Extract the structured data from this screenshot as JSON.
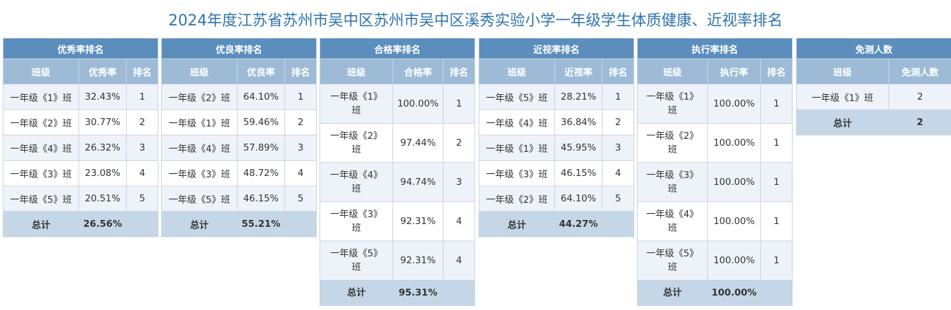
{
  "title": "2024年度江苏省苏州市吴中区苏州市吴中区溪秀实验小学一年级学生体质健康、近视率排名",
  "tables": [
    {
      "title": "优秀率排名",
      "headers": [
        "班级",
        "优秀率",
        "排名"
      ],
      "rows": [
        [
          "一年级《1》班",
          "32.43%",
          "1"
        ],
        [
          "一年级《2》班",
          "30.77%",
          "2"
        ],
        [
          "一年级《4》班",
          "26.32%",
          "3"
        ],
        [
          "一年级《3》班",
          "23.08%",
          "4"
        ],
        [
          "一年级《5》班",
          "20.51%",
          "5"
        ]
      ],
      "total": [
        "总计",
        "26.56%",
        ""
      ]
    },
    {
      "title": "优良率排名",
      "headers": [
        "班级",
        "优良率",
        "排名"
      ],
      "rows": [
        [
          "一年级《2》班",
          "64.10%",
          "1"
        ],
        [
          "一年级《1》班",
          "59.46%",
          "2"
        ],
        [
          "一年级《4》班",
          "57.89%",
          "3"
        ],
        [
          "一年级《3》班",
          "48.72%",
          "4"
        ],
        [
          "一年级《5》班",
          "46.15%",
          "5"
        ]
      ],
      "total": [
        "总计",
        "55.21%",
        ""
      ]
    },
    {
      "title": "合格率排名",
      "headers": [
        "班级",
        "合格率",
        "排名"
      ],
      "rows": [
        [
          "一年级《1》班",
          "100.00%",
          "1"
        ],
        [
          "一年级《2》班",
          "97.44%",
          "2"
        ],
        [
          "一年级《4》班",
          "94.74%",
          "3"
        ],
        [
          "一年级《3》班",
          "92.31%",
          "4"
        ],
        [
          "一年级《5》班",
          "92.31%",
          "4"
        ]
      ],
      "total": [
        "总计",
        "95.31%",
        ""
      ]
    },
    {
      "title": "近视率排名",
      "headers": [
        "班级",
        "近视率",
        "排名"
      ],
      "rows": [
        [
          "一年级《5》班",
          "28.21%",
          "1"
        ],
        [
          "一年级《4》班",
          "36.84%",
          "2"
        ],
        [
          "一年级《1》班",
          "45.95%",
          "3"
        ],
        [
          "一年级《3》班",
          "46.15%",
          "4"
        ],
        [
          "一年级《2》班",
          "64.10%",
          "5"
        ]
      ],
      "total": [
        "总计",
        "44.27%",
        ""
      ]
    },
    {
      "title": "执行率排名",
      "headers": [
        "班级",
        "执行率",
        "排名"
      ],
      "rows": [
        [
          "一年级《1》班",
          "100.00%",
          "1"
        ],
        [
          "一年级《2》班",
          "100.00%",
          "1"
        ],
        [
          "一年级《3》班",
          "100.00%",
          "1"
        ],
        [
          "一年级《4》班",
          "100.00%",
          "1"
        ],
        [
          "一年级《5》班",
          "100.00%",
          "1"
        ]
      ],
      "total": [
        "总计",
        "100.00%",
        ""
      ]
    },
    {
      "title": "免测人数",
      "headers": [
        "班级",
        "免测人数"
      ],
      "rows": [
        [
          "一年级《1》班",
          "2"
        ]
      ],
      "total": [
        "总计",
        "2"
      ]
    }
  ]
}
